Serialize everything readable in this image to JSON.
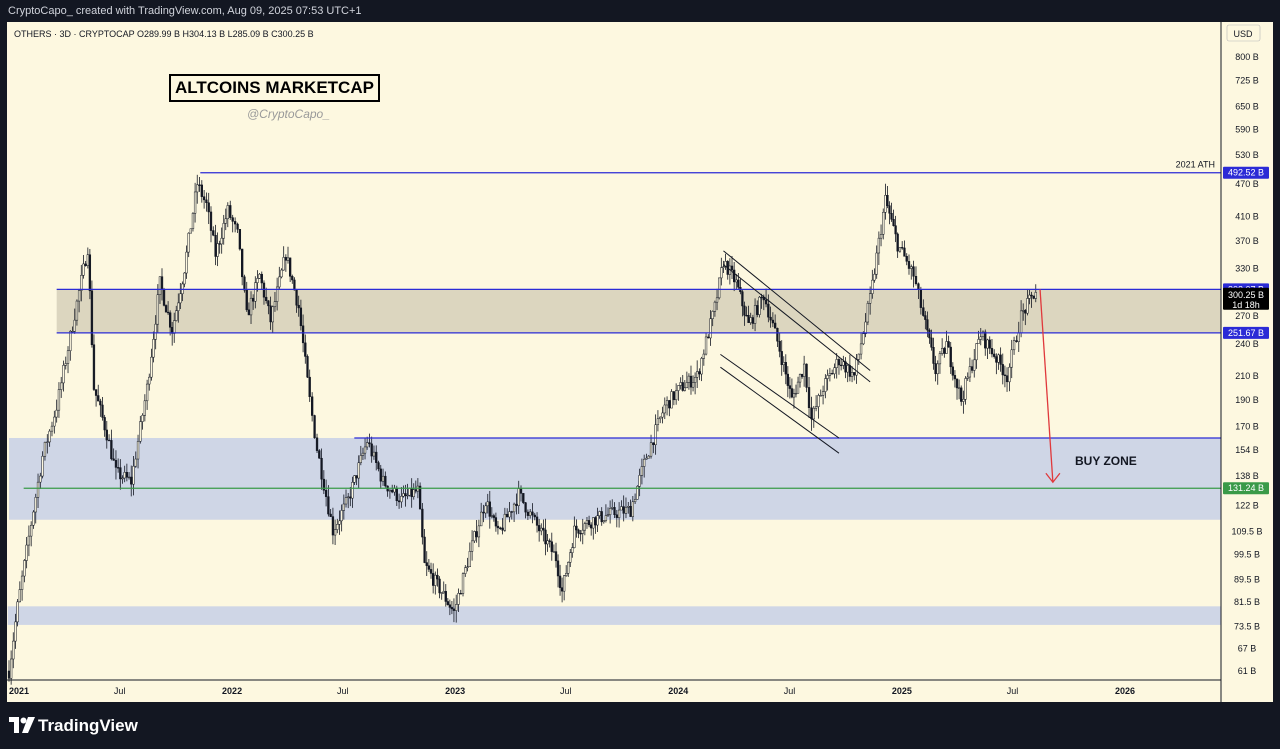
{
  "header": {
    "credit": "CryptoCapo_ created with TradingView.com, Aug 09, 2025 07:53 UTC+1",
    "symbol_line": "OTHERS · 3D · CRYPTOCAP  O289.99 B  H304.13 B  L285.09 B  C300.25 B"
  },
  "annotations": {
    "title": "ALTCOINS MARKETCAP",
    "handle": "@CryptoCapo_",
    "ath_label": "2021 ATH",
    "buy_zone": "BUY ZONE"
  },
  "footer": {
    "brand": "TradingView"
  },
  "colors": {
    "background": "#fdf8e0",
    "candle": "#131722",
    "level_line": "#2b2bd6",
    "resistance_zone": "#dcd6bf",
    "buy_zone": "#cfd6e6",
    "support_line": "#3a9a48",
    "arrow": "#e0393c"
  },
  "chart_data": {
    "type": "candlestick",
    "symbol": "OTHERS",
    "interval": "3D",
    "scale": "log",
    "currency": "USD",
    "x_ticks": [
      "2021",
      "Jul",
      "2022",
      "Jul",
      "2023",
      "Jul",
      "2024",
      "Jul",
      "2025",
      "Jul",
      "2026"
    ],
    "x_tick_dates": [
      "2021-01-01",
      "2021-07-01",
      "2022-01-01",
      "2022-07-01",
      "2023-01-01",
      "2023-07-01",
      "2024-01-01",
      "2024-07-01",
      "2025-01-01",
      "2025-07-01",
      "2026-01-01"
    ],
    "y_ticks": [
      "61 B",
      "67 B",
      "73.5 B",
      "81.5 B",
      "89.5 B",
      "99.5 B",
      "109.5 B",
      "122 B",
      "138 B",
      "154 B",
      "170 B",
      "190 B",
      "210 B",
      "240 B",
      "270 B",
      "330 B",
      "370 B",
      "410 B",
      "470 B",
      "530 B",
      "590 B",
      "650 B",
      "725 B",
      "800 B"
    ],
    "y_values": [
      61,
      67,
      73.5,
      81.5,
      89.5,
      99.5,
      109.5,
      122,
      138,
      154,
      170,
      190,
      210,
      240,
      270,
      330,
      370,
      410,
      470,
      530,
      590,
      650,
      725,
      800
    ],
    "price_line": [
      [
        "2021-01-01",
        61
      ],
      [
        "2021-01-15",
        80
      ],
      [
        "2021-02-10",
        120
      ],
      [
        "2021-02-25",
        150
      ],
      [
        "2021-03-20",
        185
      ],
      [
        "2021-04-15",
        260
      ],
      [
        "2021-05-10",
        360
      ],
      [
        "2021-05-20",
        200
      ],
      [
        "2021-06-10",
        165
      ],
      [
        "2021-06-25",
        140
      ],
      [
        "2021-07-20",
        135
      ],
      [
        "2021-08-15",
        200
      ],
      [
        "2021-09-05",
        310
      ],
      [
        "2021-09-25",
        255
      ],
      [
        "2021-10-15",
        330
      ],
      [
        "2021-11-05",
        470
      ],
      [
        "2021-11-20",
        430
      ],
      [
        "2021-12-05",
        350
      ],
      [
        "2021-12-25",
        420
      ],
      [
        "2022-01-10",
        380
      ],
      [
        "2022-01-25",
        270
      ],
      [
        "2022-02-15",
        320
      ],
      [
        "2022-03-05",
        265
      ],
      [
        "2022-03-30",
        350
      ],
      [
        "2022-04-20",
        280
      ],
      [
        "2022-05-08",
        190
      ],
      [
        "2022-05-20",
        155
      ],
      [
        "2022-06-15",
        110
      ],
      [
        "2022-07-10",
        125
      ],
      [
        "2022-08-10",
        160
      ],
      [
        "2022-09-05",
        135
      ],
      [
        "2022-10-05",
        125
      ],
      [
        "2022-11-01",
        130
      ],
      [
        "2022-11-12",
        95
      ],
      [
        "2022-12-10",
        85
      ],
      [
        "2022-12-30",
        78
      ],
      [
        "2023-01-25",
        100
      ],
      [
        "2023-02-20",
        125
      ],
      [
        "2023-03-12",
        108
      ],
      [
        "2023-04-15",
        128
      ],
      [
        "2023-05-15",
        112
      ],
      [
        "2023-06-15",
        98
      ],
      [
        "2023-06-25",
        85
      ],
      [
        "2023-07-15",
        110
      ],
      [
        "2023-08-15",
        115
      ],
      [
        "2023-09-15",
        118
      ],
      [
        "2023-10-15",
        120
      ],
      [
        "2023-11-10",
        150
      ],
      [
        "2023-12-10",
        185
      ],
      [
        "2024-01-05",
        200
      ],
      [
        "2024-02-01",
        210
      ],
      [
        "2024-03-01",
        280
      ],
      [
        "2024-03-15",
        340
      ],
      [
        "2024-04-05",
        310
      ],
      [
        "2024-04-25",
        260
      ],
      [
        "2024-05-20",
        295
      ],
      [
        "2024-06-15",
        235
      ],
      [
        "2024-07-05",
        190
      ],
      [
        "2024-07-25",
        220
      ],
      [
        "2024-08-06",
        175
      ],
      [
        "2024-08-25",
        200
      ],
      [
        "2024-09-20",
        225
      ],
      [
        "2024-10-15",
        210
      ],
      [
        "2024-11-10",
        290
      ],
      [
        "2024-12-05",
        440
      ],
      [
        "2024-12-25",
        365
      ],
      [
        "2025-01-20",
        320
      ],
      [
        "2025-02-05",
        270
      ],
      [
        "2025-02-25",
        215
      ],
      [
        "2025-03-15",
        240
      ],
      [
        "2025-04-08",
        190
      ],
      [
        "2025-05-10",
        250
      ],
      [
        "2025-06-01",
        230
      ],
      [
        "2025-06-22",
        210
      ],
      [
        "2025-07-15",
        270
      ],
      [
        "2025-08-08",
        300.25
      ]
    ],
    "last_candle": {
      "open": 289.99,
      "high": 304.13,
      "low": 285.09,
      "close": 300.25
    },
    "levels": [
      {
        "label": "2021 ATH",
        "value": 492.52,
        "value_label": "492.52 B",
        "from": "2021-11-10"
      },
      {
        "value": 302.07,
        "value_label": "302.07 B",
        "from": "2021-03-20"
      },
      {
        "value": 251.67,
        "value_label": "251.67 B",
        "from": "2021-03-20"
      },
      {
        "value": 162,
        "from": "2022-07-20"
      },
      {
        "value": 131.24,
        "value_label": "131.24 B",
        "from": "2021-01-25"
      }
    ],
    "current_price": {
      "value_label": "300.25 B",
      "countdown": "1d 18h"
    },
    "zones": [
      {
        "name": "resistance",
        "from_value": 251.67,
        "to_value": 302.07,
        "from": "2021-03-20"
      },
      {
        "name": "buy",
        "from_value": 115,
        "to_value": 162,
        "from": "2021-01-01"
      },
      {
        "name": "lower",
        "from_value": 74,
        "to_value": 80,
        "from": "2020-12-30"
      }
    ],
    "channel": [
      {
        "p1": [
          "2024-03-15",
          355
        ],
        "p2": [
          "2024-11-10",
          215
        ]
      },
      {
        "p1": [
          "2024-03-15",
          335
        ],
        "p2": [
          "2024-11-10",
          205
        ]
      },
      {
        "p1": [
          "2024-03-10",
          230
        ],
        "p2": [
          "2024-09-20",
          162
        ]
      },
      {
        "p1": [
          "2024-03-10",
          218
        ],
        "p2": [
          "2024-09-20",
          152
        ]
      }
    ],
    "arrow": {
      "from": [
        "2025-08-15",
        302
      ],
      "to": [
        "2025-09-05",
        131.24
      ]
    }
  }
}
